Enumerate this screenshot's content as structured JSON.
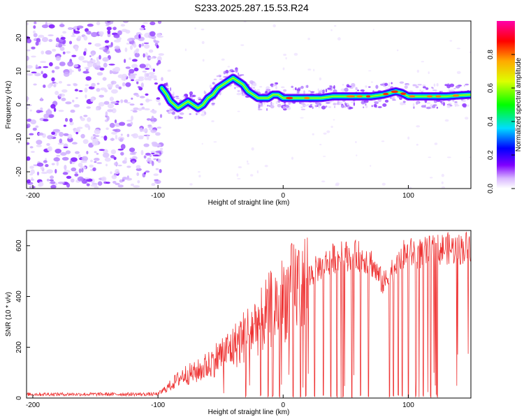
{
  "title": "S233.2025.287.15.53.R24",
  "chart_data": [
    {
      "type": "heatmap",
      "xlabel": "Height of straight line (km)",
      "ylabel": "Frequency (Hz)",
      "xlim": [
        -205,
        150
      ],
      "ylim": [
        -25,
        25
      ],
      "xticks": [
        -200,
        -100,
        0,
        100
      ],
      "yticks": [
        -20,
        -10,
        0,
        10,
        20
      ],
      "xtick_labels": [
        "-200",
        "-100",
        "0",
        "100"
      ],
      "ytick_labels": [
        "-20",
        "-10",
        "0",
        "10",
        "20"
      ],
      "noise_region_x": [
        -205,
        -97
      ],
      "ridge": {
        "x": [
          -97,
          -93,
          -90,
          -87,
          -84,
          -80,
          -76,
          -72,
          -68,
          -64,
          -60,
          -56,
          -52,
          -48,
          -44,
          -40,
          -36,
          -32,
          -28,
          -24,
          -20,
          -16,
          -12,
          -8,
          -4,
          0,
          10,
          20,
          30,
          40,
          50,
          60,
          70,
          80,
          85,
          90,
          95,
          100,
          110,
          120,
          130,
          140,
          150
        ],
        "y": [
          5,
          3,
          1,
          0,
          -1,
          0,
          1,
          0,
          -1,
          0,
          2,
          3,
          5,
          6,
          7,
          8,
          7,
          6,
          4,
          3,
          2,
          2,
          2,
          3,
          3,
          2,
          2,
          2,
          2,
          2.5,
          2.5,
          2.5,
          2.5,
          3,
          3.5,
          4,
          3.5,
          2.5,
          2.5,
          2.5,
          2.5,
          2.8,
          3
        ]
      },
      "colorbar": {
        "label": "Normalized spectral amplitude",
        "range": [
          0,
          1
        ],
        "ticks": [
          0.0,
          0.2,
          0.4,
          0.6,
          0.8
        ],
        "tick_labels": [
          "0.0",
          "0.2",
          "0.4",
          "0.6",
          "0.8"
        ]
      }
    },
    {
      "type": "line",
      "xlabel": "Height of straight line (km)",
      "ylabel": "SNR (10 * v/v)",
      "xlim": [
        -205,
        150
      ],
      "ylim": [
        0,
        660
      ],
      "xticks": [
        -200,
        -100,
        0,
        100
      ],
      "yticks": [
        0,
        200,
        400,
        600
      ],
      "xtick_labels": [
        "-200",
        "-100",
        "0",
        "100"
      ],
      "ytick_labels": [
        "0",
        "200",
        "400",
        "600"
      ],
      "line_color": "#ee3333",
      "envelope": {
        "x": [
          -205,
          -100,
          -90,
          -80,
          -70,
          -60,
          -50,
          -40,
          -30,
          -20,
          -10,
          0,
          10,
          20,
          30,
          40,
          50,
          60,
          70,
          75,
          80,
          85,
          90,
          95,
          100,
          110,
          120,
          130,
          140,
          150
        ],
        "y": [
          15,
          15,
          50,
          90,
          100,
          130,
          170,
          200,
          250,
          300,
          350,
          390,
          440,
          480,
          520,
          550,
          560,
          560,
          540,
          490,
          450,
          480,
          540,
          560,
          570,
          570,
          580,
          590,
          585,
          600
        ]
      },
      "dropout_x": [
        -30,
        -18,
        -12,
        -8,
        -3,
        8,
        14,
        18,
        25,
        32,
        38,
        43,
        48,
        55,
        62,
        68,
        85,
        88,
        92,
        95,
        100,
        106,
        112,
        118,
        123
      ]
    }
  ]
}
